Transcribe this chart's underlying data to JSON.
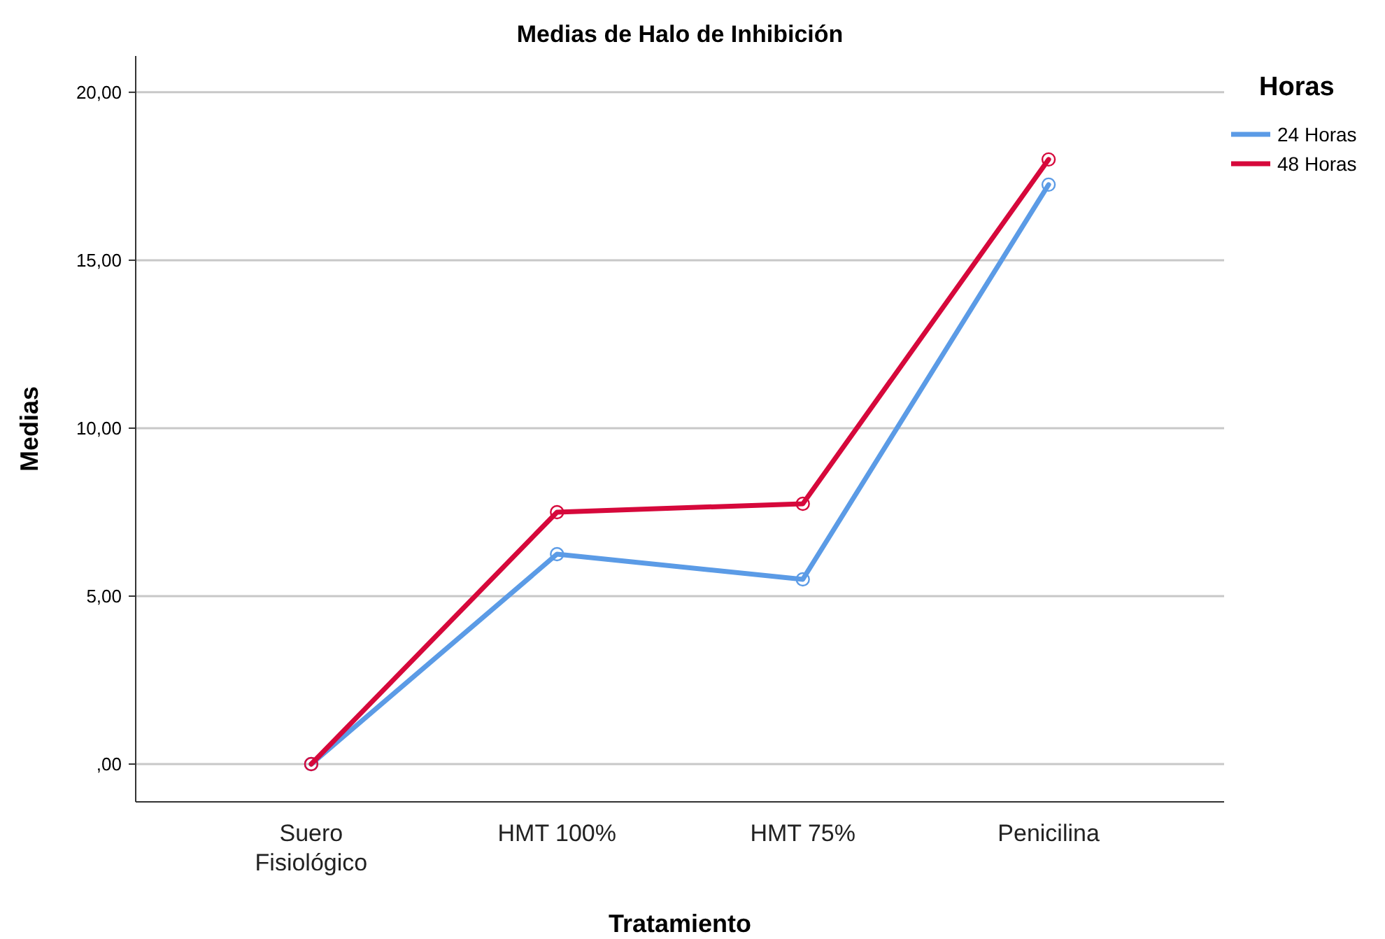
{
  "chart_data": {
    "type": "line",
    "title": "Medias de Halo de Inhibición",
    "xlabel": "Tratamiento",
    "ylabel": "Medias",
    "legend_title": "Horas",
    "categories": [
      "Suero Fisiológico",
      "HMT 100%",
      "HMT 75%",
      "Penicilina"
    ],
    "series": [
      {
        "name": "24 Horas",
        "color": "#5b9be6",
        "values": [
          0,
          6.25,
          5.5,
          17.25
        ]
      },
      {
        "name": "48 Horas",
        "color": "#d6083b",
        "values": [
          0,
          7.5,
          7.75,
          18
        ]
      }
    ],
    "ylim": [
      -1.125,
      21.08
    ],
    "yticks": [
      {
        "value": 0,
        "label": ",00"
      },
      {
        "value": 5,
        "label": "5,00"
      },
      {
        "value": 10,
        "label": "10,00"
      },
      {
        "value": 15,
        "label": "15,00"
      },
      {
        "value": 20,
        "label": "20,00"
      }
    ],
    "grid": "y",
    "legend": "top right",
    "marker": "circle",
    "line_style": "solid"
  }
}
